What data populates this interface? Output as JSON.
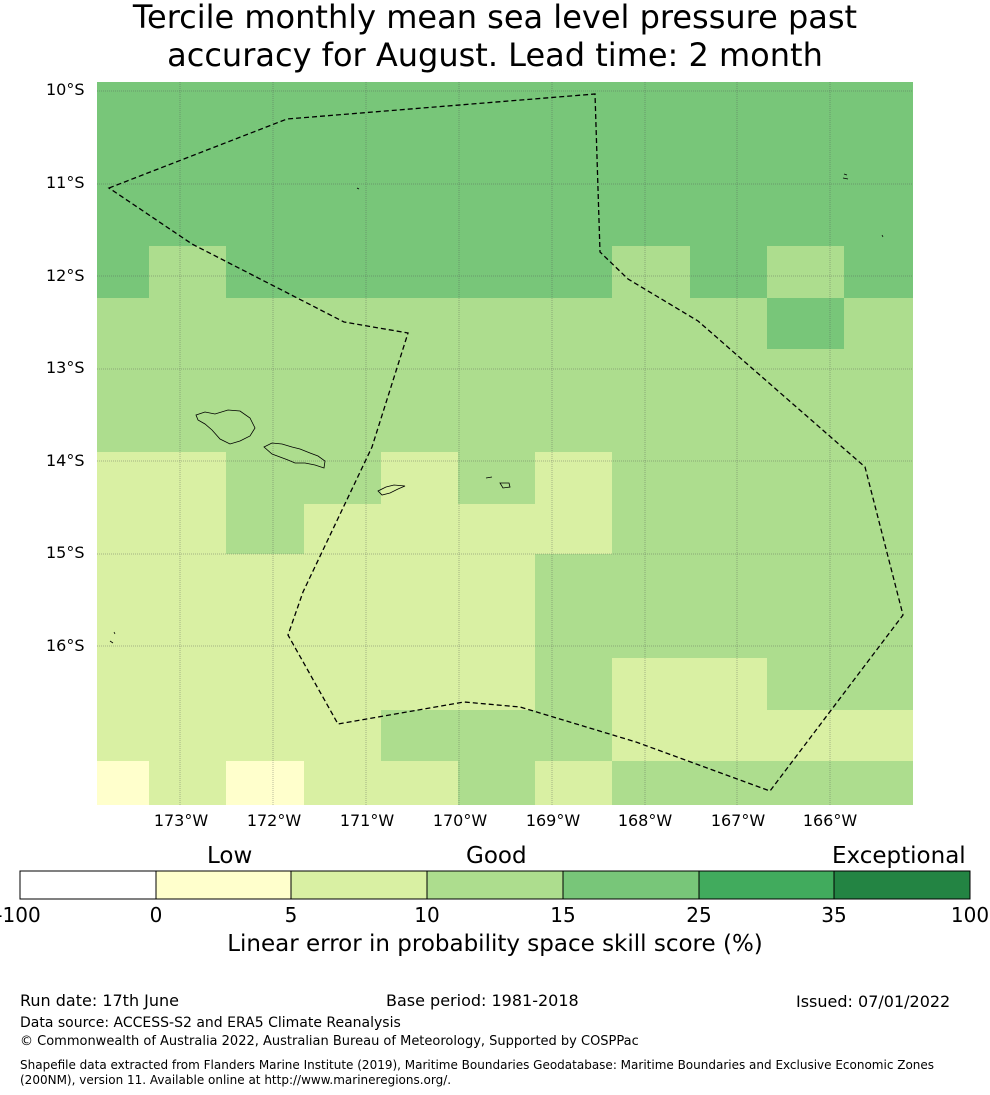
{
  "title_line1": "Tercile monthly mean sea level pressure past",
  "title_line2": "accuracy for August. Lead time: 2 month",
  "lat_labels": [
    "10°S",
    "11°S",
    "12°S",
    "13°S",
    "14°S",
    "15°S",
    "16°S"
  ],
  "lon_labels": [
    "173°W",
    "172°W",
    "171°W",
    "170°W",
    "169°W",
    "168°W",
    "167°W",
    "166°W"
  ],
  "legend": {
    "categories": [
      "Low",
      "Good",
      "Exceptional"
    ],
    "ticks": [
      "-100",
      "0",
      "5",
      "10",
      "15",
      "25",
      "35",
      "100"
    ],
    "colors": [
      "#ffffff",
      "#ffffcc",
      "#d9f0a3",
      "#addd8e",
      "#78c679",
      "#41ab5d",
      "#238443"
    ],
    "label": "Linear error in probability space skill score (%)"
  },
  "footer": {
    "run_date": "Run date: 17th June",
    "base_period": "Base period: 1981-2018",
    "issued": "Issued: 07/01/2022",
    "data_source": "Data source: ACCESS-S2 and ERA5 Climate Reanalysis",
    "copyright": "© Commonwealth of Australia 2022, Australian Bureau of Meteorology, Supported by COSPPac",
    "shapefile_line1": "Shapefile data extracted from Flanders Marine Institute (2019), Maritime Boundaries Geodatabase: Maritime Boundaries and Exclusive Economic Zones",
    "shapefile_line2": "(200NM), version 11. Available online at http://www.marineregions.org/."
  }
}
